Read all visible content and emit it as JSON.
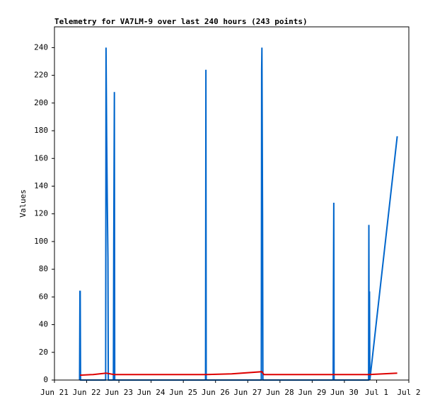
{
  "chart_data": {
    "type": "line",
    "title": "Telemetry for VA7LM-9 over last 240 hours (243 points)",
    "ylabel": "Values",
    "xlim": [
      0,
      11
    ],
    "ylim": [
      0,
      255
    ],
    "xticks": [
      {
        "value": 0,
        "label": "Jun 21"
      },
      {
        "value": 1,
        "label": "Jun 22"
      },
      {
        "value": 2,
        "label": "Jun 23"
      },
      {
        "value": 3,
        "label": "Jun 24"
      },
      {
        "value": 4,
        "label": "Jun 25"
      },
      {
        "value": 5,
        "label": "Jun 26"
      },
      {
        "value": 6,
        "label": "Jun 27"
      },
      {
        "value": 7,
        "label": "Jun 28"
      },
      {
        "value": 8,
        "label": "Jun 29"
      },
      {
        "value": 9,
        "label": "Jun 30"
      },
      {
        "value": 10,
        "label": "Jul 1"
      },
      {
        "value": 11,
        "label": "Jul 2"
      }
    ],
    "yticks": [
      0,
      20,
      40,
      60,
      80,
      100,
      120,
      140,
      160,
      180,
      200,
      220,
      240
    ],
    "series": [
      {
        "color": "#0066cc",
        "x": [
          0.78,
          0.79,
          0.8,
          0.81,
          1.59,
          1.6,
          1.62,
          1.64,
          1.66,
          1.67,
          1.83,
          1.84,
          1.86,
          1.87,
          4.69,
          4.7,
          4.71,
          6.42,
          6.43,
          6.44,
          6.46,
          6.47,
          8.65,
          8.66,
          8.67,
          8.68,
          9.75,
          9.76,
          9.77,
          9.78,
          9.79,
          10.64
        ],
        "values": [
          0,
          64,
          64,
          0,
          0,
          240,
          176,
          128,
          88,
          0,
          0,
          96,
          208,
          0,
          0,
          224,
          0,
          0,
          224,
          240,
          120,
          0,
          0,
          64,
          128,
          0,
          0,
          112,
          0,
          64,
          0,
          176
        ]
      },
      {
        "color": "#dd0000",
        "x": [
          0.79,
          1.2,
          1.6,
          1.85,
          4.7,
          5.5,
          6.44,
          6.5,
          9.76,
          10.2,
          10.64
        ],
        "values": [
          3.5,
          4,
          5,
          4,
          4,
          4.5,
          6,
          4,
          4,
          4.5,
          5
        ]
      }
    ]
  }
}
